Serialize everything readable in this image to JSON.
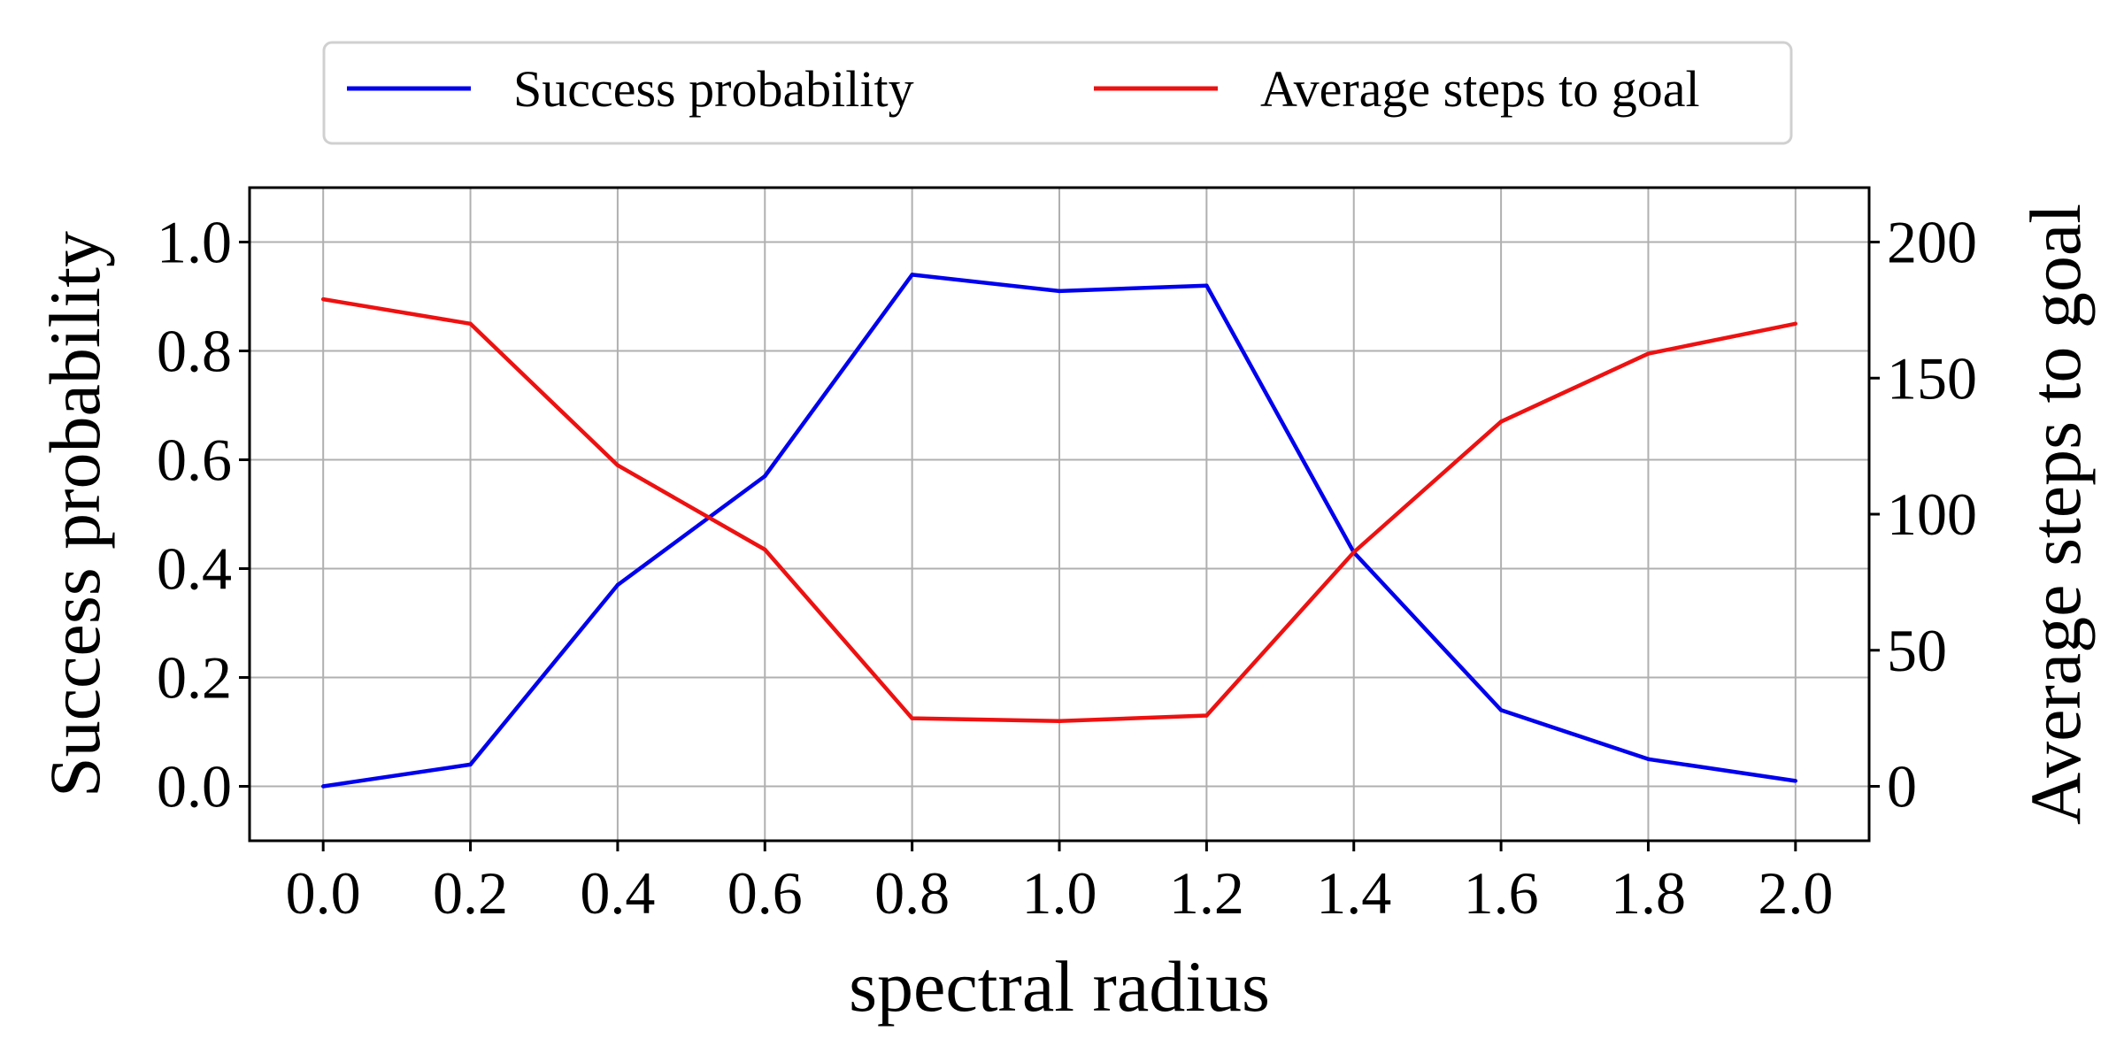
{
  "chart_data": {
    "type": "line",
    "x": [
      0.0,
      0.2,
      0.4,
      0.6,
      0.8,
      1.0,
      1.2,
      1.4,
      1.6,
      1.8,
      2.0
    ],
    "x_tick_labels": [
      "0.0",
      "0.2",
      "0.4",
      "0.6",
      "0.8",
      "1.0",
      "1.2",
      "1.4",
      "1.6",
      "1.8",
      "2.0"
    ],
    "xlabel": "spectral radius",
    "xlim": [
      -0.1,
      2.1
    ],
    "y_left": {
      "label": "Success probability",
      "lim": [
        -0.1,
        1.1
      ],
      "ticks": [
        0.0,
        0.2,
        0.4,
        0.6,
        0.8,
        1.0
      ],
      "tick_labels": [
        "0.0",
        "0.2",
        "0.4",
        "0.6",
        "0.8",
        "1.0"
      ]
    },
    "y_right": {
      "label": "Average steps to goal",
      "lim": [
        -20,
        220
      ],
      "ticks": [
        0,
        50,
        100,
        150,
        200
      ],
      "tick_labels": [
        "0",
        "50",
        "100",
        "150",
        "200"
      ]
    },
    "series": [
      {
        "name": "Success probability",
        "axis": "left",
        "color": "#0000ee",
        "values": [
          0.0,
          0.04,
          0.37,
          0.57,
          0.94,
          0.91,
          0.92,
          0.43,
          0.14,
          0.05,
          0.01
        ]
      },
      {
        "name": "Average steps to goal",
        "axis": "right",
        "color": "#ee1111",
        "values": [
          179,
          170,
          118,
          87,
          25,
          24,
          26,
          86,
          134,
          159,
          170
        ]
      }
    ],
    "grid": true,
    "legend_position": "top-center"
  }
}
